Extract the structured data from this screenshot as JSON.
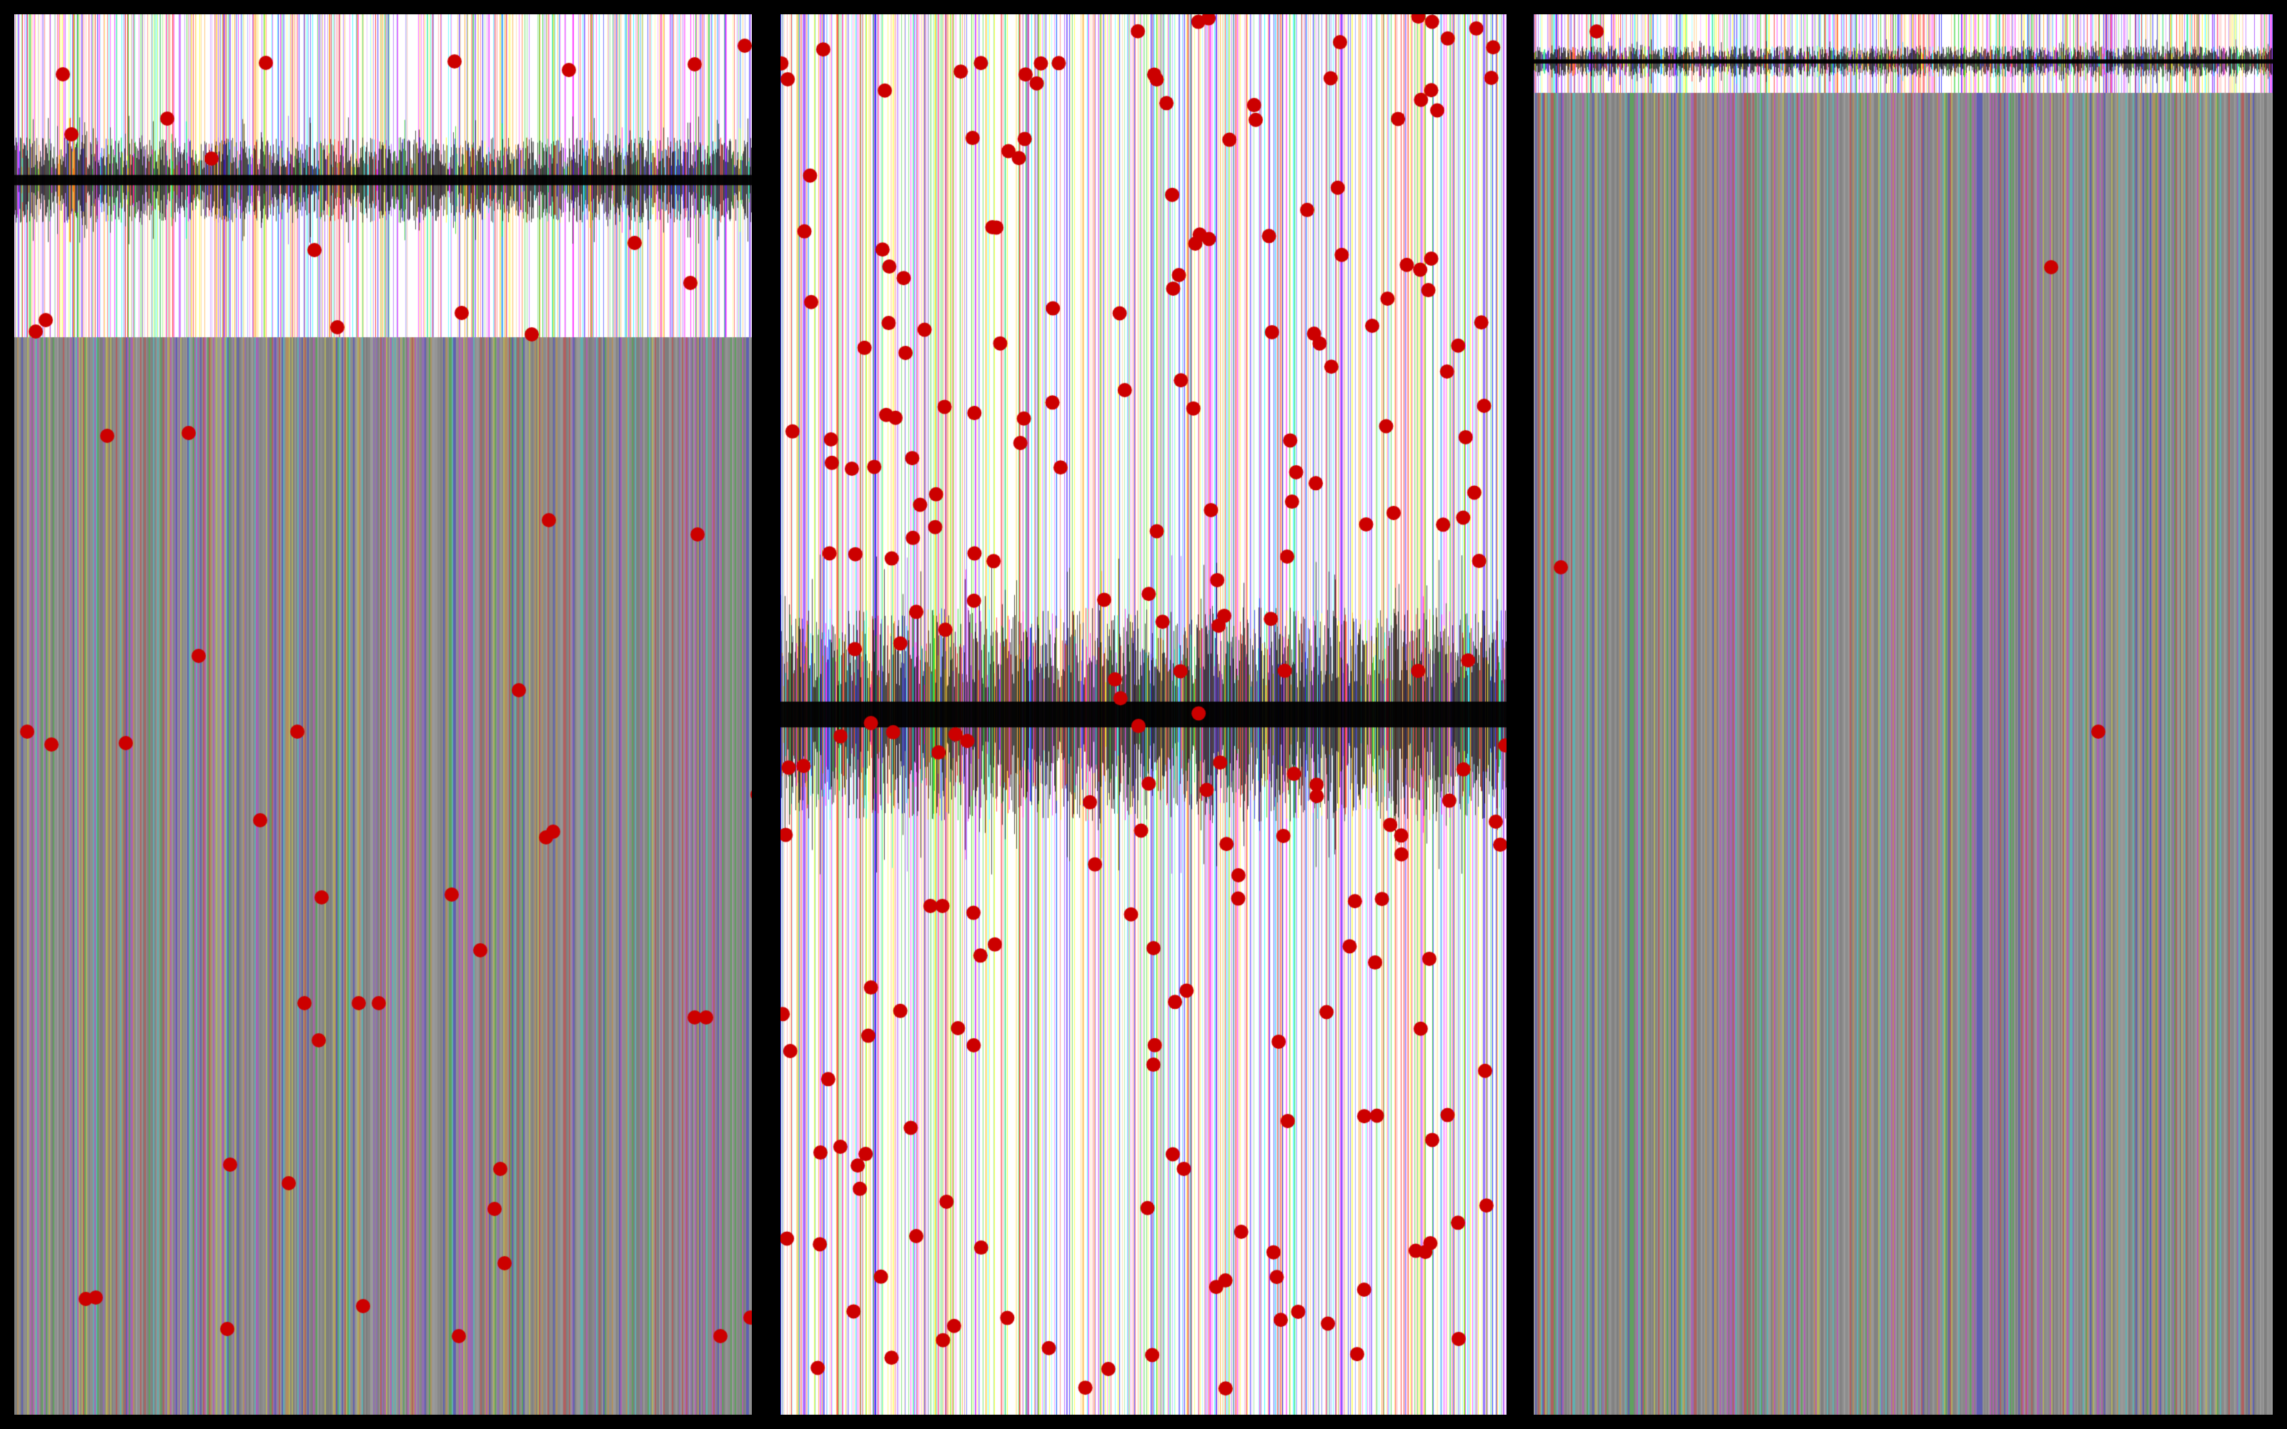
{
  "panels": [
    {
      "id": "left",
      "white_band": "top",
      "marks_text": "",
      "palette": [
        "#ff00ff",
        "#00cc00",
        "#0000ff",
        "#ffff00",
        "#ff0000",
        "#00ffff",
        "#ff9900",
        "#9933ff"
      ],
      "dot_color": "#cc0000",
      "dot_count": 52,
      "seed": 11
    },
    {
      "id": "middle",
      "white_band": "full",
      "marks_text": "",
      "palette": [
        "#ff00ff",
        "#00cc00",
        "#0000ff",
        "#ffff00",
        "#ff0000",
        "#00ffff",
        "#ff9900",
        "#9933ff"
      ],
      "dot_color": "#cc0000",
      "dot_count": 240,
      "seed": 37
    },
    {
      "id": "right",
      "white_band": "top-thin",
      "marks_text": "",
      "palette": [
        "#ff00ff",
        "#00cc00",
        "#0000ff",
        "#ffff00",
        "#ff0000",
        "#00ffff",
        "#ff9900",
        "#9933ff"
      ],
      "dot_color": "#cc0000",
      "dot_count": 3,
      "seed": 73
    }
  ],
  "background_color": "#000000",
  "stripe_gray": "#8c8c8c"
}
